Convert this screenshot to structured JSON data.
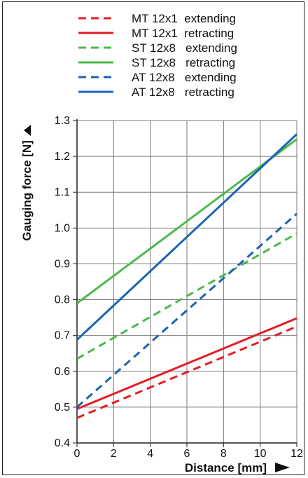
{
  "chart_data": {
    "type": "line",
    "xlabel": "Distance [mm]",
    "ylabel": "Gauging force [N]",
    "xlim": [
      0,
      12
    ],
    "ylim": [
      0.4,
      1.3
    ],
    "x_ticks": [
      "0",
      "2",
      "4",
      "6",
      "8",
      "10",
      "12"
    ],
    "y_ticks": [
      "0.4",
      "0.5",
      "0.6",
      "0.7",
      "0.8",
      "0.9",
      "1.0",
      "1.1",
      "1.2",
      "1.3"
    ],
    "grid": true,
    "legend_position": "top",
    "series": [
      {
        "name": "MT 12x1  extending",
        "color": "#e31e24",
        "dash": true,
        "x": [
          0,
          12
        ],
        "y": [
          0.47,
          0.725
        ]
      },
      {
        "name": "MT 12x1  retracting",
        "color": "#e31e24",
        "dash": false,
        "x": [
          0,
          12
        ],
        "y": [
          0.495,
          0.748
        ]
      },
      {
        "name": "ST 12x8   extending",
        "color": "#4cb84a",
        "dash": true,
        "x": [
          0,
          12
        ],
        "y": [
          0.635,
          0.985
        ]
      },
      {
        "name": "ST 12x8   retracting",
        "color": "#4cb84a",
        "dash": false,
        "x": [
          0,
          12
        ],
        "y": [
          0.79,
          1.248
        ]
      },
      {
        "name": "AT 12x8   extending",
        "color": "#1b63b5",
        "dash": true,
        "x": [
          0,
          12
        ],
        "y": [
          0.5,
          1.04
        ]
      },
      {
        "name": "AT 12x8   retracting",
        "color": "#1b63b5",
        "dash": false,
        "x": [
          0,
          12
        ],
        "y": [
          0.688,
          1.262
        ]
      }
    ]
  }
}
